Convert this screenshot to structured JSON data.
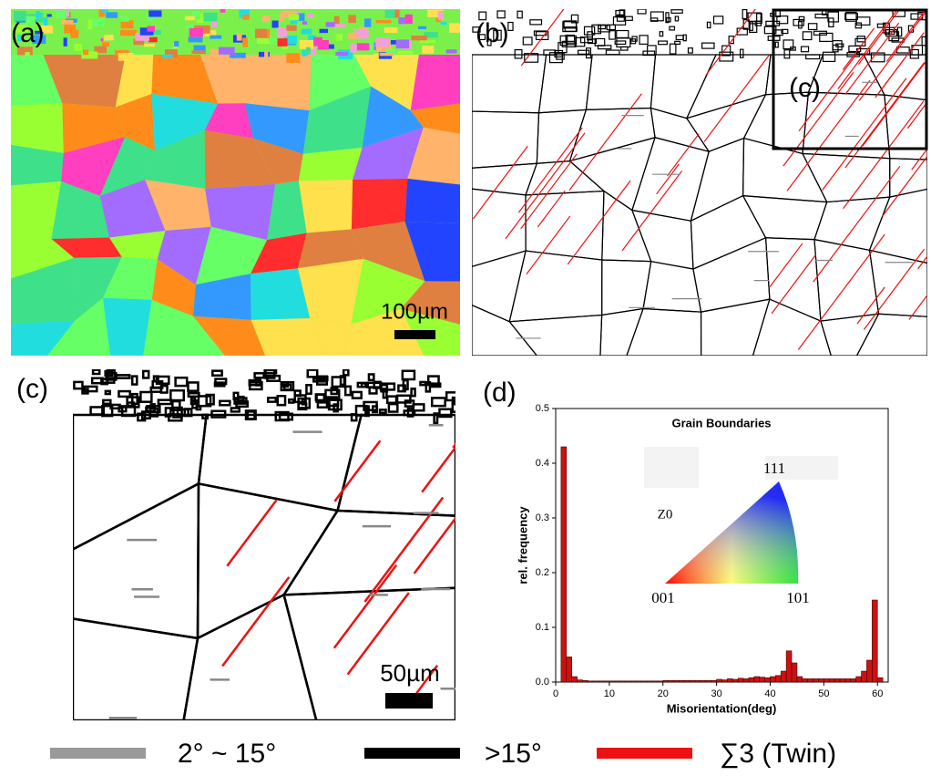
{
  "panels": {
    "a": {
      "label": "(a)",
      "scale_bar": "100µm"
    },
    "b": {
      "label": "(b)",
      "inset_label": "(c)"
    },
    "c": {
      "label": "(c)",
      "scale_bar": "50µm"
    },
    "d": {
      "label": "(d)"
    }
  },
  "chart_data": {
    "type": "histogram",
    "title": "Grain Boundaries",
    "x_label": "Misorientation(deg)",
    "y_label": "rel. frequency",
    "bins": [
      0,
      1,
      2,
      3,
      4,
      5,
      6,
      7,
      8,
      9,
      10,
      11,
      12,
      13,
      14,
      15,
      16,
      17,
      18,
      19,
      20,
      21,
      22,
      23,
      24,
      25,
      26,
      27,
      28,
      29,
      30,
      31,
      32,
      33,
      34,
      35,
      36,
      37,
      38,
      39,
      40,
      41,
      42,
      43,
      44,
      45,
      46,
      47,
      48,
      49,
      50,
      51,
      52,
      53,
      54,
      55,
      56,
      57,
      58,
      59,
      60,
      61,
      62
    ],
    "values": [
      0,
      0.43,
      0.046,
      0.01,
      0.004,
      0.003,
      0.002,
      0.002,
      0.002,
      0.002,
      0.002,
      0.002,
      0.002,
      0.002,
      0.002,
      0.002,
      0.002,
      0.002,
      0.002,
      0.002,
      0.003,
      0.003,
      0.003,
      0.003,
      0.003,
      0.003,
      0.003,
      0.003,
      0.003,
      0.003,
      0.005,
      0.004,
      0.006,
      0.005,
      0.007,
      0.006,
      0.008,
      0.01,
      0.009,
      0.008,
      0.01,
      0.012,
      0.02,
      0.057,
      0.035,
      0.01,
      0.006,
      0.006,
      0.006,
      0.006,
      0.006,
      0.006,
      0.006,
      0.006,
      0.006,
      0.006,
      0.01,
      0.02,
      0.04,
      0.15,
      0.008,
      0
    ],
    "color": "#cc1111",
    "xlim": [
      0,
      62
    ],
    "ylim": [
      0,
      0.5
    ],
    "xticks": [
      0,
      10,
      20,
      30,
      40,
      50,
      60
    ],
    "yticks": [
      {
        "value": 0,
        "label": "0.0"
      },
      {
        "value": 0.1,
        "label": "0.1"
      },
      {
        "value": 0.2,
        "label": "0.2"
      },
      {
        "value": 0.3,
        "label": "0.3"
      },
      {
        "value": 0.4,
        "label": "0.4"
      },
      {
        "value": 0.5,
        "label": "0.5"
      }
    ],
    "inset": {
      "top": "111",
      "left": "001",
      "right": "101",
      "axis": "Z0"
    }
  },
  "legend": [
    {
      "label": "2° ~ 15°",
      "color": "#999999"
    },
    {
      "label": ">15°",
      "color": "#000000"
    },
    {
      "label": "∑3 (Twin)",
      "color": "#ee1111"
    }
  ]
}
